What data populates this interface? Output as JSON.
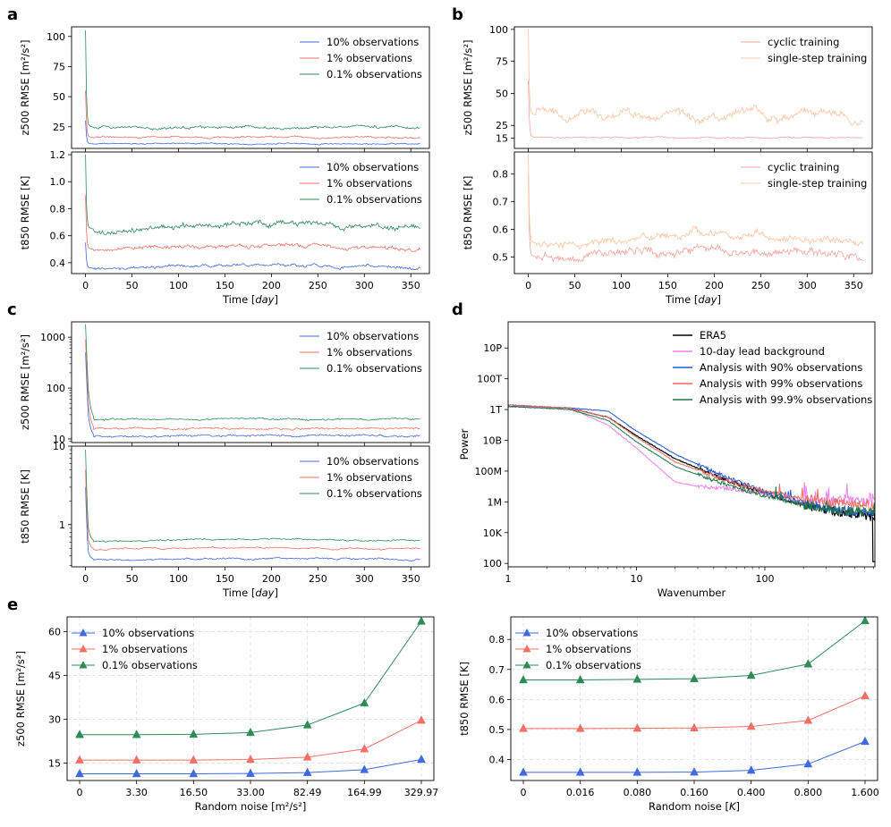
{
  "panel_letters": [
    "a",
    "b",
    "c",
    "d",
    "e"
  ],
  "colors": {
    "blue": "#4169e1",
    "red": "#f07066",
    "green": "#2e8b57",
    "red_light": "#f4a39c",
    "orange_light": "#fcc9a8",
    "black": "#000000",
    "violet": "#ee82ee",
    "analysis_blue": "#1f58d6",
    "analysis_red": "#f06a5e",
    "analysis_green": "#1e7a4a"
  },
  "chart_data": [
    {
      "id": "a-top",
      "panel": "a",
      "type": "line",
      "ylabel": "z500 RMSE [m²/s²]",
      "xlim": [
        -15,
        370
      ],
      "ylim": [
        7,
        108
      ],
      "yticks": [
        25,
        50,
        75,
        100
      ],
      "yticklabels": [
        "25",
        "50",
        "75",
        "100"
      ],
      "show_xticklabels": false,
      "legend": [
        "10% observations",
        "1% observations",
        "0.1% observations"
      ],
      "series": [
        {
          "name": "10% observations",
          "color": "blue",
          "width": 0.8,
          "start": 30,
          "level": 10.8,
          "noise": 0.6,
          "drift": 0
        },
        {
          "name": "1% observations",
          "color": "red",
          "width": 0.8,
          "start": 55,
          "level": 16.0,
          "noise": 0.8,
          "drift": 0
        },
        {
          "name": "0.1% observations",
          "color": "green",
          "width": 0.8,
          "start": 105,
          "level": 24.5,
          "noise": 1.2,
          "drift": 0
        }
      ]
    },
    {
      "id": "a-bottom",
      "panel": "a",
      "type": "line",
      "ylabel": "t850 RMSE [K]",
      "xlabel": "Time [day]",
      "xlim": [
        -15,
        370
      ],
      "ylim": [
        0.32,
        1.22
      ],
      "yticks": [
        0.4,
        0.6,
        0.8,
        1.0,
        1.2
      ],
      "yticklabels": [
        "0.4",
        "0.6",
        "0.8",
        "1.0",
        "1.2"
      ],
      "xticks": [
        0,
        50,
        100,
        150,
        200,
        250,
        300,
        350
      ],
      "legend": [
        "10% observations",
        "1% observations",
        "0.1% observations"
      ],
      "series": [
        {
          "name": "10% observations",
          "color": "blue",
          "width": 0.8,
          "start": 0.55,
          "level": 0.36,
          "noise": 0.012,
          "drift": 0.02
        },
        {
          "name": "1% observations",
          "color": "red",
          "width": 0.8,
          "start": 0.9,
          "level": 0.5,
          "noise": 0.015,
          "drift": 0.03
        },
        {
          "name": "0.1% observations",
          "color": "green",
          "width": 0.8,
          "start": 1.2,
          "level": 0.65,
          "noise": 0.022,
          "drift": 0.04
        }
      ]
    },
    {
      "id": "b-top",
      "panel": "b",
      "type": "line",
      "ylabel": "z500 RMSE [m²/s²]",
      "xlim": [
        -15,
        370
      ],
      "ylim": [
        7,
        102
      ],
      "yticks": [
        25,
        50,
        75,
        100
      ],
      "yticklabels": [
        "25",
        "50",
        "75",
        "100"
      ],
      "extra_yticks": [
        {
          "v": 15,
          "label": "15"
        }
      ],
      "show_xticklabels": false,
      "legend": [
        "cyclic training",
        "single-step training"
      ],
      "series": [
        {
          "name": "cyclic training",
          "color": "red_light",
          "width": 0.8,
          "start": 60,
          "level": 15.5,
          "noise": 0.6,
          "drift": 0
        },
        {
          "name": "single-step training",
          "color": "orange_light",
          "width": 0.9,
          "start": 100,
          "level": 33,
          "noise": 3.5,
          "drift": 0,
          "wavy": 4
        }
      ]
    },
    {
      "id": "b-bottom",
      "panel": "b",
      "type": "line",
      "ylabel": "t850 RMSE [K]",
      "xlabel": "Time [day]",
      "xlim": [
        -15,
        370
      ],
      "ylim": [
        0.44,
        0.88
      ],
      "yticks": [
        0.5,
        0.6,
        0.7,
        0.8
      ],
      "yticklabels": [
        "0.5",
        "0.6",
        "0.7",
        "0.8"
      ],
      "xticks": [
        0,
        50,
        100,
        150,
        200,
        250,
        300,
        350
      ],
      "legend": [
        "cyclic training",
        "single-step training"
      ],
      "series": [
        {
          "name": "cyclic training",
          "color": "red_light",
          "width": 0.8,
          "start": 0.8,
          "level": 0.5,
          "noise": 0.018,
          "drift": 0.03
        },
        {
          "name": "single-step training",
          "color": "orange_light",
          "width": 0.9,
          "start": 0.87,
          "level": 0.55,
          "noise": 0.015,
          "drift": 0.03
        }
      ]
    },
    {
      "id": "c-top",
      "panel": "c",
      "type": "line",
      "yscale": "log",
      "ylabel": "z500 RMSE [m²/s²]",
      "xlim": [
        -15,
        370
      ],
      "ylim": [
        8.5,
        2000
      ],
      "yticks": [
        10,
        100,
        1000
      ],
      "yticklabels": [
        "10",
        "100",
        "1000"
      ],
      "show_xticklabels": false,
      "legend": [
        "10% observations",
        "1% observations",
        "0.1% observations"
      ],
      "series": [
        {
          "name": "10% observations",
          "color": "blue",
          "width": 0.8,
          "start": 500,
          "level": 11.5,
          "noise": 0.6,
          "drift": 0
        },
        {
          "name": "1% observations",
          "color": "red",
          "width": 0.8,
          "start": 900,
          "level": 16.0,
          "noise": 0.8,
          "drift": 0
        },
        {
          "name": "0.1% observations",
          "color": "green",
          "width": 0.8,
          "start": 1800,
          "level": 24.5,
          "noise": 1.0,
          "drift": 0
        }
      ]
    },
    {
      "id": "c-bottom",
      "panel": "c",
      "type": "line",
      "yscale": "log",
      "ylabel": "t850 RMSE [K]",
      "xlabel": "Time [day]",
      "xlim": [
        -15,
        370
      ],
      "ylim": [
        0.29,
        10
      ],
      "yticks": [
        1,
        10
      ],
      "yticklabels": [
        "1",
        "10"
      ],
      "xticks": [
        0,
        50,
        100,
        150,
        200,
        250,
        300,
        350
      ],
      "legend": [
        "10% observations",
        "1% observations",
        "0.1% observations"
      ],
      "series": [
        {
          "name": "10% observations",
          "color": "blue",
          "width": 0.8,
          "start": 3.0,
          "level": 0.36,
          "noise": 0.01,
          "drift": 0.01
        },
        {
          "name": "1% observations",
          "color": "red",
          "width": 0.8,
          "start": 5.0,
          "level": 0.49,
          "noise": 0.012,
          "drift": 0.02
        },
        {
          "name": "0.1% observations",
          "color": "green",
          "width": 0.8,
          "start": 9.0,
          "level": 0.62,
          "noise": 0.015,
          "drift": 0.03
        }
      ]
    },
    {
      "id": "d",
      "panel": "d",
      "type": "line",
      "xscale": "log",
      "yscale": "log",
      "ylabel": "Power",
      "xlabel": "Wavenumber",
      "xlim": [
        1,
        720
      ],
      "ylim": [
        60,
        5e+17
      ],
      "yticks": [
        100,
        10000,
        1000000,
        100000000,
        10000000000,
        1000000000000,
        100000000000000,
        10000000000000000
      ],
      "yticklabels": [
        "100",
        "10K",
        "1M",
        "100M",
        "10B",
        "1T",
        "100T",
        "10P"
      ],
      "xticks": [
        1,
        10,
        100
      ],
      "xticklabels": [
        "1",
        "10",
        "100"
      ],
      "legend": [
        "ERA5",
        "10-day lead background",
        "Analysis with 90% observations",
        "Analysis with 99% observations",
        "Analysis with 99.9% observations"
      ],
      "spectrum_anchors": {
        "ERA5": [
          [
            1,
            12.2
          ],
          [
            3,
            12.1
          ],
          [
            6,
            11.5
          ],
          [
            10,
            10.3
          ],
          [
            20,
            8.8
          ],
          [
            50,
            7.4
          ],
          [
            100,
            6.6
          ],
          [
            200,
            5.8
          ],
          [
            400,
            5.3
          ],
          [
            700,
            5.0
          ]
        ],
        "10-day lead background": [
          [
            1,
            12.2
          ],
          [
            3,
            12.1
          ],
          [
            6,
            11.0
          ],
          [
            10,
            9.5
          ],
          [
            15,
            8.2
          ],
          [
            20,
            7.3
          ],
          [
            30,
            7.0
          ],
          [
            50,
            6.9
          ],
          [
            100,
            6.5
          ],
          [
            200,
            6.0
          ],
          [
            400,
            6.1
          ],
          [
            700,
            6.0
          ]
        ],
        "Analysis with 90% observations": [
          [
            1,
            12.3
          ],
          [
            3,
            12.1
          ],
          [
            6,
            11.9
          ],
          [
            10,
            10.6
          ],
          [
            20,
            9.1
          ],
          [
            50,
            7.6
          ],
          [
            100,
            6.7
          ],
          [
            200,
            6.0
          ],
          [
            400,
            5.4
          ],
          [
            700,
            5.3
          ]
        ],
        "Analysis with 99% observations": [
          [
            1,
            12.3
          ],
          [
            3,
            12.1
          ],
          [
            6,
            11.5
          ],
          [
            10,
            10.2
          ],
          [
            20,
            8.6
          ],
          [
            50,
            7.4
          ],
          [
            100,
            6.7
          ],
          [
            200,
            6.2
          ],
          [
            400,
            5.9
          ],
          [
            700,
            5.7
          ]
        ],
        "Analysis with 99.9% observations": [
          [
            1,
            12.2
          ],
          [
            3,
            12.0
          ],
          [
            6,
            11.3
          ],
          [
            10,
            9.9
          ],
          [
            20,
            8.3
          ],
          [
            50,
            7.1
          ],
          [
            100,
            6.4
          ],
          [
            200,
            5.8
          ],
          [
            400,
            5.4
          ],
          [
            700,
            5.3
          ]
        ]
      },
      "series": [
        {
          "name": "ERA5",
          "color": "black",
          "width": 1.2
        },
        {
          "name": "10-day lead background",
          "color": "violet",
          "width": 1.0
        },
        {
          "name": "Analysis with 90% observations",
          "color": "analysis_blue",
          "width": 1.0
        },
        {
          "name": "Analysis with 99% observations",
          "color": "analysis_red",
          "width": 1.0
        },
        {
          "name": "Analysis with 99.9% observations",
          "color": "analysis_green",
          "width": 1.0
        }
      ]
    },
    {
      "id": "e-left",
      "panel": "e",
      "type": "line",
      "markers": "triangle",
      "ylabel": "z500 RMSE [m²/s²]",
      "xlabel": "Random noise [m²/s²]",
      "categories": [
        "0",
        "3.30",
        "16.50",
        "33.00",
        "82.49",
        "164.99",
        "329.97"
      ],
      "ylim": [
        9,
        65
      ],
      "yticks": [
        15,
        30,
        45,
        60
      ],
      "yticklabels": [
        "15",
        "30",
        "45",
        "60"
      ],
      "grid": true,
      "legend": [
        "10% observations",
        "1% observations",
        "0.1% observations"
      ],
      "series": [
        {
          "name": "10% observations",
          "color": "blue",
          "values": [
            11.3,
            11.3,
            11.3,
            11.4,
            11.7,
            12.7,
            16.2
          ]
        },
        {
          "name": "1% observations",
          "color": "red",
          "values": [
            16.0,
            16.0,
            16.0,
            16.2,
            17.0,
            19.8,
            29.6
          ]
        },
        {
          "name": "0.1% observations",
          "color": "green",
          "values": [
            24.7,
            24.7,
            24.8,
            25.4,
            28.0,
            35.5,
            63.5
          ]
        }
      ]
    },
    {
      "id": "e-right",
      "panel": "e",
      "type": "line",
      "markers": "triangle",
      "ylabel": "t850 RMSE [K]",
      "xlabel": "Random noise [K]",
      "categories": [
        "0",
        "0.016",
        "0.080",
        "0.160",
        "0.400",
        "0.800",
        "1.600"
      ],
      "ylim": [
        0.33,
        0.875
      ],
      "yticks": [
        0.4,
        0.5,
        0.6,
        0.7,
        0.8
      ],
      "yticklabels": [
        "0.4",
        "0.5",
        "0.6",
        "0.7",
        "0.8"
      ],
      "grid": true,
      "legend": [
        "10% observations",
        "1% observations",
        "0.1% observations"
      ],
      "series": [
        {
          "name": "10% observations",
          "color": "blue",
          "values": [
            0.357,
            0.357,
            0.357,
            0.358,
            0.364,
            0.385,
            0.46
          ]
        },
        {
          "name": "1% observations",
          "color": "red",
          "values": [
            0.503,
            0.503,
            0.504,
            0.505,
            0.51,
            0.53,
            0.612
          ]
        },
        {
          "name": "0.1% observations",
          "color": "green",
          "values": [
            0.665,
            0.665,
            0.667,
            0.669,
            0.68,
            0.718,
            0.862
          ]
        }
      ]
    }
  ]
}
